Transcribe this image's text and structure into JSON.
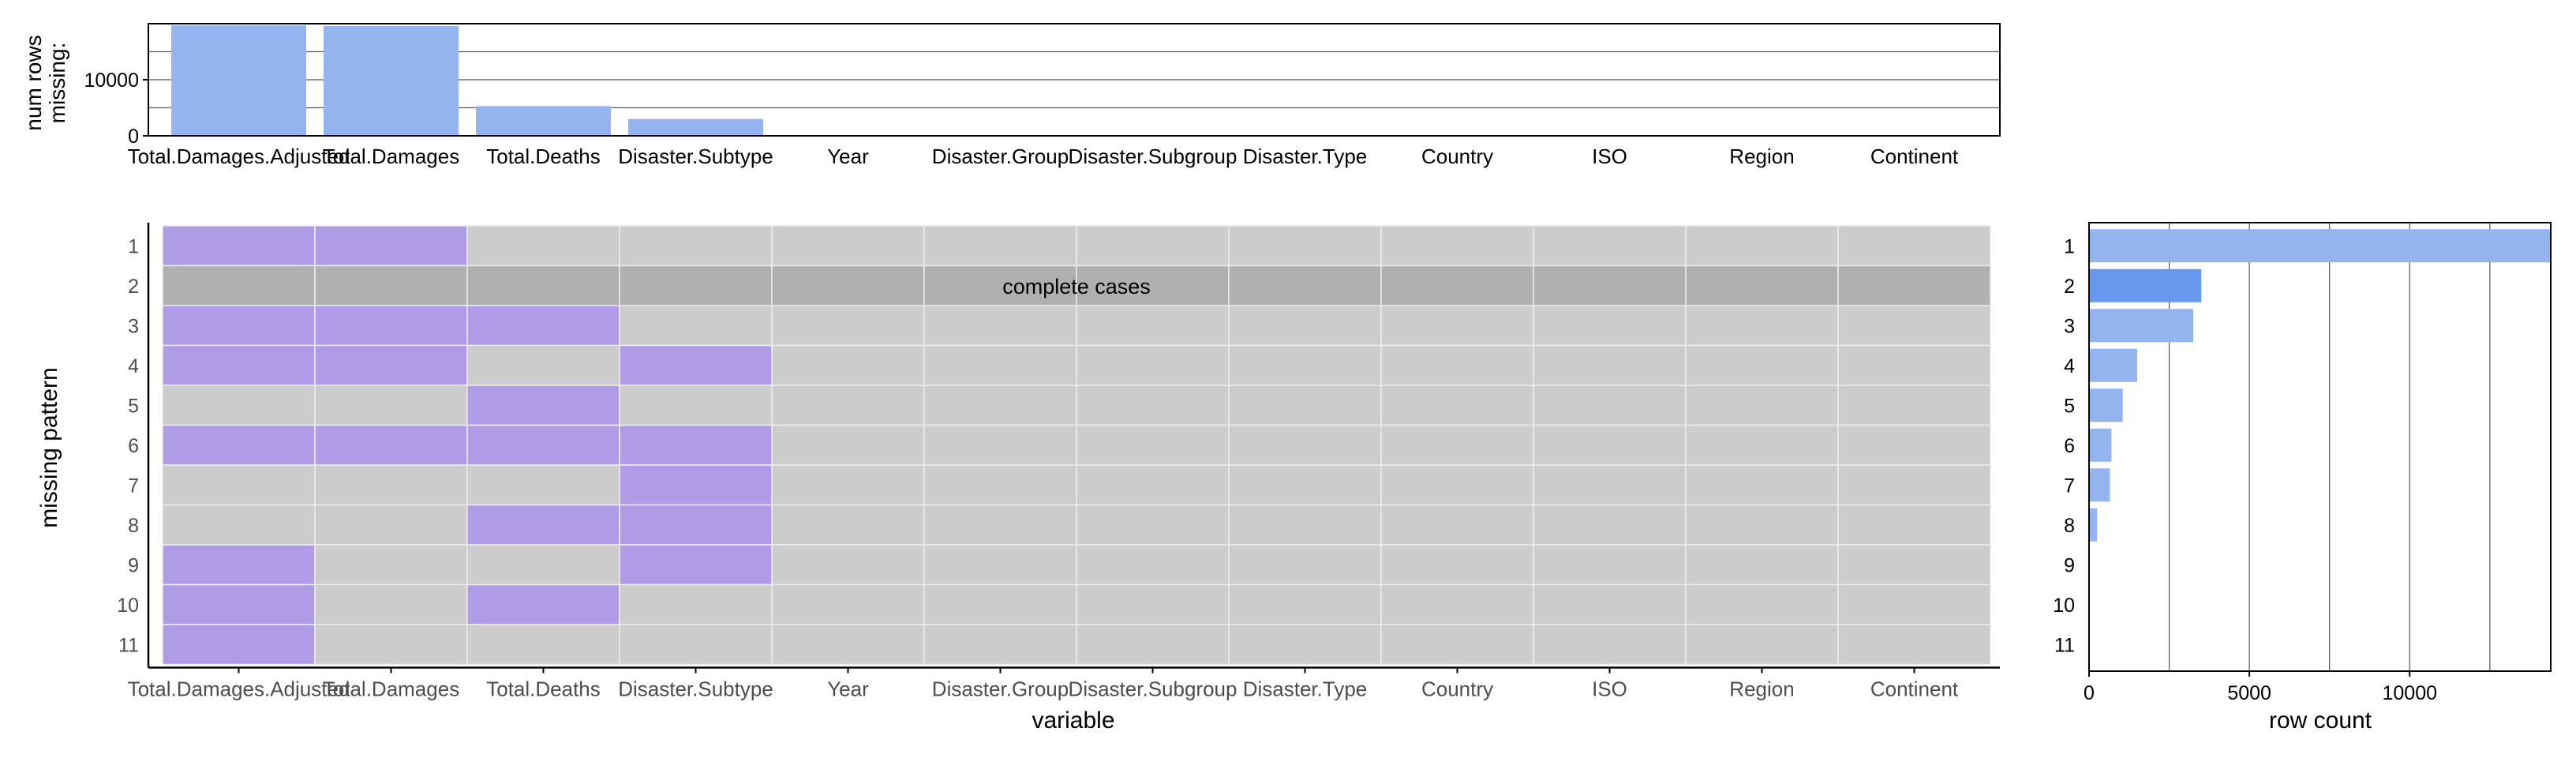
{
  "colors": {
    "missing": "#b09ce6",
    "present": "#cccccc",
    "complete_row": "#b0b0b0",
    "bar": "#94b4ef",
    "bar_highlight": "#6699ee",
    "cell_border": "#ececec",
    "axis": "#000000",
    "tick_text": "#4d4d4d",
    "label_text": "#000000"
  },
  "chart_data": [
    {
      "id": "top",
      "type": "bar",
      "categories": [
        "Total.Damages.Adjusted",
        "Total.Damages",
        "Total.Deaths",
        "Disaster.Subtype",
        "Year",
        "Disaster.Group",
        "Disaster.Subgroup",
        "Disaster.Type",
        "Country",
        "ISO",
        "Region",
        "Continent"
      ],
      "values": [
        19700,
        19600,
        5300,
        3000,
        0,
        0,
        0,
        0,
        0,
        0,
        0,
        0
      ],
      "ylabel": "num rows\nmissing:",
      "yticks": [
        0,
        10000
      ],
      "ylim": [
        0,
        20000
      ],
      "grid_y": [
        5000,
        10000,
        15000
      ]
    },
    {
      "id": "heatmap",
      "type": "heatmap",
      "xlabel": "variable",
      "ylabel": "missing pattern",
      "columns": [
        "Total.Damages.Adjusted",
        "Total.Damages",
        "Total.Deaths",
        "Disaster.Subtype",
        "Year",
        "Disaster.Group",
        "Disaster.Subgroup",
        "Disaster.Type",
        "Country",
        "ISO",
        "Region",
        "Continent"
      ],
      "patterns": [
        "1",
        "2",
        "3",
        "4",
        "5",
        "6",
        "7",
        "8",
        "9",
        "10",
        "11"
      ],
      "matrix": [
        [
          1,
          1,
          0,
          0,
          0,
          0,
          0,
          0,
          0,
          0,
          0,
          0
        ],
        [
          0,
          0,
          0,
          0,
          0,
          0,
          0,
          0,
          0,
          0,
          0,
          0
        ],
        [
          1,
          1,
          1,
          0,
          0,
          0,
          0,
          0,
          0,
          0,
          0,
          0
        ],
        [
          1,
          1,
          0,
          1,
          0,
          0,
          0,
          0,
          0,
          0,
          0,
          0
        ],
        [
          0,
          0,
          1,
          0,
          0,
          0,
          0,
          0,
          0,
          0,
          0,
          0
        ],
        [
          1,
          1,
          1,
          1,
          0,
          0,
          0,
          0,
          0,
          0,
          0,
          0
        ],
        [
          0,
          0,
          0,
          1,
          0,
          0,
          0,
          0,
          0,
          0,
          0,
          0
        ],
        [
          0,
          0,
          1,
          1,
          0,
          0,
          0,
          0,
          0,
          0,
          0,
          0
        ],
        [
          1,
          0,
          0,
          1,
          0,
          0,
          0,
          0,
          0,
          0,
          0,
          0
        ],
        [
          1,
          0,
          1,
          0,
          0,
          0,
          0,
          0,
          0,
          0,
          0,
          0
        ],
        [
          1,
          0,
          0,
          0,
          0,
          0,
          0,
          0,
          0,
          0,
          0,
          0
        ]
      ],
      "complete_cases_row": "2",
      "complete_cases_label": "complete cases"
    },
    {
      "id": "right",
      "type": "bar",
      "orientation": "horizontal",
      "categories": [
        "1",
        "2",
        "3",
        "4",
        "5",
        "6",
        "7",
        "8",
        "9",
        "10",
        "11"
      ],
      "values": [
        14500,
        3500,
        3250,
        1500,
        1050,
        700,
        650,
        250,
        15,
        10,
        5
      ],
      "highlight": "2",
      "xlabel": "row count",
      "xticks": [
        0,
        5000,
        10000
      ],
      "xlim": [
        0,
        14400
      ],
      "grid_x": [
        2500,
        5000,
        7500,
        10000,
        12500
      ]
    }
  ]
}
